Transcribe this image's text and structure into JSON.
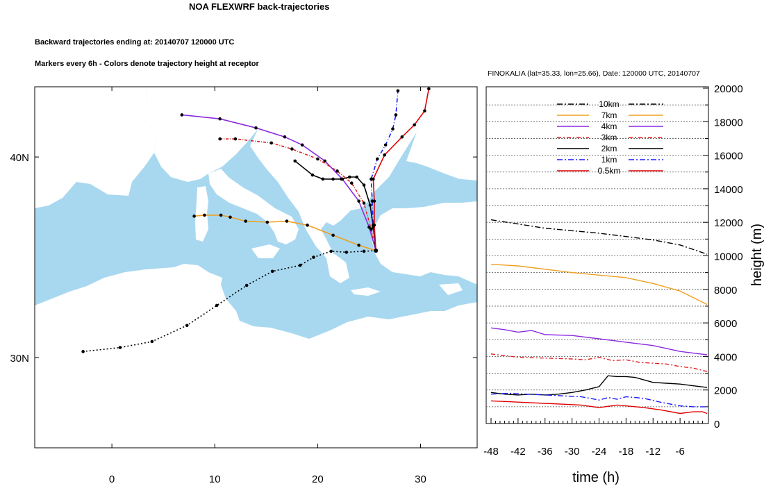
{
  "titles": {
    "main": "NOA FLEXWRF back-trajectories",
    "sub1": "Backward trajectories ending at: 20140707  120000 UTC",
    "sub2": "Markers every 6h - Colors denote trajectory height at receptor",
    "right": "FINOKALIA (lat=35.33,  lon=25.66), Date: 120000 UTC, 20140707"
  },
  "colors": {
    "sea": "#a8d8f0",
    "land": "#ffffff",
    "10km": "#000000",
    "7km": "#f0a020",
    "4km": "#8a2be2",
    "3km": "#e02020",
    "2km": "#000000",
    "1km": "#1a1aff",
    "0.5km": "#e00000"
  },
  "chart_data": [
    {
      "type": "line",
      "title": "NOA FLEXWRF back-trajectories",
      "subtitle": "Backward trajectories ending at: 20140707  120000 UTC",
      "x_ticks": [
        0,
        10,
        20,
        30
      ],
      "y_ticks": [
        30,
        40
      ],
      "x_tick_labels": [
        "0",
        "10",
        "20",
        "30"
      ],
      "y_tick_labels": [
        "30N",
        "40N"
      ],
      "xlim": [
        -7.5,
        35.5
      ],
      "ylim": [
        25.5,
        43.5
      ],
      "receptor": [
        25.66,
        35.33
      ],
      "series": [
        {
          "name": "10km",
          "color": "#000000",
          "dash": "2,3",
          "points": [
            [
              25.66,
              35.33
            ],
            [
              24.5,
              35.3
            ],
            [
              22.8,
              35.25
            ],
            [
              21.3,
              35.3
            ],
            [
              19.6,
              35.0
            ],
            [
              18.3,
              34.6
            ],
            [
              15.6,
              34.3
            ],
            [
              13.1,
              33.6
            ],
            [
              10.2,
              32.6
            ],
            [
              7.3,
              31.6
            ],
            [
              3.9,
              30.8
            ],
            [
              0.8,
              30.5
            ],
            [
              -2.8,
              30.3
            ]
          ]
        },
        {
          "name": "7km",
          "color": "#f0a020",
          "dash": "",
          "points": [
            [
              25.66,
              35.33
            ],
            [
              24.0,
              35.6
            ],
            [
              21.5,
              36.1
            ],
            [
              19.0,
              36.6
            ],
            [
              17.0,
              36.8
            ],
            [
              15.1,
              36.75
            ],
            [
              13.0,
              36.8
            ],
            [
              11.5,
              37.0
            ],
            [
              10.6,
              37.1
            ],
            [
              9.0,
              37.1
            ],
            [
              8.0,
              37.05
            ]
          ]
        },
        {
          "name": "4km",
          "color": "#8a2be2",
          "dash": "",
          "points": [
            [
              25.66,
              35.33
            ],
            [
              25.0,
              36.5
            ],
            [
              24.0,
              37.8
            ],
            [
              22.4,
              38.9
            ],
            [
              20.7,
              39.8
            ],
            [
              18.5,
              40.6
            ],
            [
              16.8,
              41.0
            ],
            [
              14.0,
              41.45
            ],
            [
              10.5,
              41.9
            ],
            [
              6.8,
              42.1
            ]
          ]
        },
        {
          "name": "3km",
          "color": "#e02020",
          "dash": "4,2,1,2",
          "points": [
            [
              25.66,
              35.33
            ],
            [
              25.2,
              36.4
            ],
            [
              24.5,
              37.7
            ],
            [
              23.3,
              38.7
            ],
            [
              21.9,
              39.3
            ],
            [
              20.0,
              39.9
            ],
            [
              17.5,
              40.4
            ],
            [
              15.5,
              40.7
            ],
            [
              12.0,
              40.9
            ],
            [
              10.5,
              40.9
            ]
          ]
        },
        {
          "name": "2km",
          "color": "#000000",
          "dash": "",
          "points": [
            [
              25.66,
              35.33
            ],
            [
              25.4,
              36.5
            ],
            [
              25.1,
              37.6
            ],
            [
              24.5,
              38.6
            ],
            [
              23.8,
              39.0
            ],
            [
              23.1,
              39.0
            ],
            [
              22.3,
              38.9
            ],
            [
              21.5,
              38.9
            ],
            [
              20.5,
              38.9
            ],
            [
              19.5,
              39.1
            ],
            [
              17.8,
              39.8
            ]
          ]
        },
        {
          "name": "1km",
          "color": "#1a1aff",
          "dash": "6,3,1,3",
          "points": [
            [
              25.66,
              35.33
            ],
            [
              25.4,
              36.6
            ],
            [
              25.3,
              37.8
            ],
            [
              25.2,
              38.9
            ],
            [
              25.8,
              39.9
            ],
            [
              26.6,
              40.6
            ],
            [
              27.3,
              41.4
            ],
            [
              27.6,
              42.1
            ],
            [
              27.8,
              43.3
            ]
          ]
        },
        {
          "name": "0.5km",
          "color": "#e00000",
          "dash": "",
          "points": [
            [
              25.66,
              35.33
            ],
            [
              25.5,
              36.6
            ],
            [
              25.5,
              37.8
            ],
            [
              25.4,
              38.9
            ],
            [
              26.5,
              40.1
            ],
            [
              28.2,
              41.0
            ],
            [
              29.4,
              41.6
            ],
            [
              30.4,
              42.3
            ],
            [
              30.8,
              43.4
            ]
          ]
        }
      ]
    },
    {
      "type": "line",
      "title": "FINOKALIA (lat=35.33,  lon=25.66), Date: 120000 UTC, 20140707",
      "xlabel": "time (h)",
      "ylabel": "height (m)",
      "xlim": [
        -48,
        0
      ],
      "ylim": [
        0,
        20000
      ],
      "x_ticks": [
        -48,
        -42,
        -36,
        -30,
        -24,
        -18,
        -12,
        -6
      ],
      "x_tick_labels": [
        "-48",
        "-42",
        "-36",
        "-30",
        "-24",
        "-18",
        "-12",
        "-6"
      ],
      "y_ticks": [
        0,
        2000,
        4000,
        6000,
        8000,
        10000,
        12000,
        14000,
        16000,
        18000,
        20000
      ],
      "y_tick_labels": [
        "0",
        "2000",
        "4000",
        "6000",
        "8000",
        "10000",
        "12000",
        "14000",
        "16000",
        "18000",
        "20000"
      ],
      "legend_placement": "top-center",
      "series": [
        {
          "name": "10km",
          "color": "#000000",
          "dash": "8,3,2,3",
          "x": [
            -48,
            -42,
            -36,
            -30,
            -24,
            -18,
            -12,
            -6,
            0
          ],
          "values": [
            12150,
            11900,
            11650,
            11500,
            11350,
            11150,
            10950,
            10650,
            10100
          ]
        },
        {
          "name": "7km",
          "color": "#f0a020",
          "dash": "",
          "x": [
            -48,
            -42,
            -36,
            -30,
            -24,
            -18,
            -12,
            -6,
            0
          ],
          "values": [
            9500,
            9400,
            9200,
            9000,
            8850,
            8700,
            8350,
            7900,
            7100
          ]
        },
        {
          "name": "4km",
          "color": "#8a2be2",
          "dash": "",
          "x": [
            -48,
            -45,
            -42,
            -39,
            -36,
            -30,
            -24,
            -18,
            -12,
            -6,
            0
          ],
          "values": [
            5700,
            5600,
            5450,
            5550,
            5300,
            5250,
            5050,
            4850,
            4650,
            4300,
            4100
          ]
        },
        {
          "name": "3km",
          "color": "#e02020",
          "dash": "6,3,2,3",
          "x": [
            -48,
            -42,
            -36,
            -30,
            -27,
            -24,
            -21,
            -18,
            -15,
            -12,
            -9,
            -6,
            -3,
            0
          ],
          "values": [
            4150,
            3950,
            3900,
            3850,
            3800,
            3950,
            3750,
            3800,
            3650,
            3600,
            3550,
            3400,
            3300,
            3100
          ]
        },
        {
          "name": "2km",
          "color": "#000000",
          "dash": "",
          "x": [
            -48,
            -45,
            -42,
            -39,
            -36,
            -33,
            -30,
            -27,
            -24,
            -22,
            -20,
            -18,
            -16,
            -14,
            -12,
            -9,
            -6,
            -3,
            0
          ],
          "values": [
            1850,
            1750,
            1700,
            1750,
            1700,
            1750,
            1850,
            2000,
            2200,
            2850,
            2800,
            2800,
            2750,
            2600,
            2450,
            2400,
            2350,
            2250,
            2150
          ]
        },
        {
          "name": "1km",
          "color": "#1a1aff",
          "dash": "8,3,2,3",
          "x": [
            -48,
            -44,
            -40,
            -36,
            -32,
            -28,
            -24,
            -22,
            -20,
            -18,
            -14,
            -10,
            -6,
            -3,
            0
          ],
          "values": [
            1750,
            1800,
            1750,
            1700,
            1650,
            1600,
            1400,
            1550,
            1450,
            1600,
            1500,
            1250,
            1050,
            1000,
            1000
          ]
        },
        {
          "name": "0.5km",
          "color": "#e00000",
          "dash": "",
          "x": [
            -48,
            -44,
            -40,
            -36,
            -32,
            -28,
            -24,
            -20,
            -18,
            -14,
            -10,
            -6,
            -3,
            -1,
            0
          ],
          "values": [
            1350,
            1300,
            1250,
            1200,
            1150,
            1100,
            950,
            1100,
            1050,
            950,
            800,
            600,
            700,
            700,
            600
          ]
        }
      ]
    }
  ]
}
